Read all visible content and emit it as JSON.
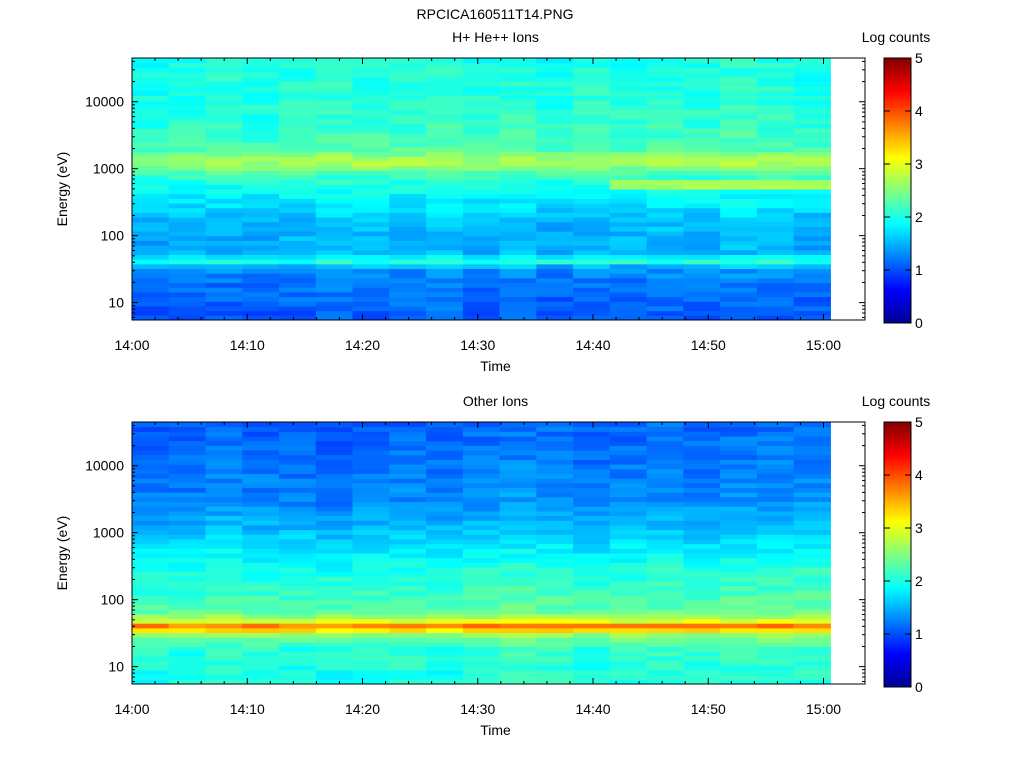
{
  "figure_title": "RPCICA160511T14.PNG",
  "colormap": [
    "#00008f",
    "#0000ff",
    "#0080ff",
    "#00ffff",
    "#80ff80",
    "#ffff00",
    "#ff8000",
    "#ff0000",
    "#800000"
  ],
  "chart_data": [
    {
      "type": "heatmap",
      "title": "H+ He++ Ions",
      "xlabel": "Time",
      "ylabel": "Energy (eV)",
      "xticks": [
        "14:00",
        "14:10",
        "14:20",
        "14:30",
        "14:40",
        "14:50",
        "15:00"
      ],
      "yticks": [
        "10",
        "100",
        "1000",
        "10000"
      ],
      "y_scale": "log",
      "ylim": [
        5.5,
        45000
      ],
      "x_range_minutes": [
        0,
        63.6
      ],
      "data_end_minutes": 60.6,
      "n_time_bins": 19,
      "colorbar": {
        "label": "Log counts",
        "ticks": [
          "0",
          "1",
          "2",
          "3",
          "4",
          "5"
        ],
        "range": [
          0,
          5
        ]
      },
      "energy_profile": [
        {
          "energy": 6,
          "log_counts": 1.05
        },
        {
          "energy": 10,
          "log_counts": 1.15
        },
        {
          "energy": 20,
          "log_counts": 1.2
        },
        {
          "energy": 33,
          "log_counts": 1.35
        },
        {
          "energy": 42,
          "log_counts": 2.1
        },
        {
          "energy": 55,
          "log_counts": 1.5
        },
        {
          "energy": 150,
          "log_counts": 1.55
        },
        {
          "energy": 400,
          "log_counts": 1.85
        },
        {
          "energy": 800,
          "log_counts": 2.15
        },
        {
          "energy": 1300,
          "log_counts": 2.8
        },
        {
          "energy": 2000,
          "log_counts": 2.25
        },
        {
          "energy": 5000,
          "log_counts": 2.1
        },
        {
          "energy": 45000,
          "log_counts": 2.0
        }
      ],
      "features": [
        {
          "energy": 600,
          "from_minutes": 42,
          "to_minutes": 60.6,
          "log_counts": 2.7
        }
      ]
    },
    {
      "type": "heatmap",
      "title": "Other Ions",
      "xlabel": "Time",
      "ylabel": "Energy (eV)",
      "xticks": [
        "14:00",
        "14:10",
        "14:20",
        "14:30",
        "14:40",
        "14:50",
        "15:00"
      ],
      "yticks": [
        "10",
        "100",
        "1000",
        "10000"
      ],
      "y_scale": "log",
      "ylim": [
        5.5,
        45000
      ],
      "x_range_minutes": [
        0,
        63.6
      ],
      "data_end_minutes": 60.6,
      "n_time_bins": 19,
      "colorbar": {
        "label": "Log counts",
        "ticks": [
          "0",
          "1",
          "2",
          "3",
          "4",
          "5"
        ],
        "range": [
          0,
          5
        ]
      },
      "energy_profile": [
        {
          "energy": 6,
          "log_counts": 2.0
        },
        {
          "energy": 20,
          "log_counts": 2.1
        },
        {
          "energy": 30,
          "log_counts": 2.6
        },
        {
          "energy": 40,
          "log_counts": 3.9
        },
        {
          "energy": 50,
          "log_counts": 2.8
        },
        {
          "energy": 70,
          "log_counts": 2.3
        },
        {
          "energy": 300,
          "log_counts": 2.0
        },
        {
          "energy": 1000,
          "log_counts": 1.6
        },
        {
          "energy": 3000,
          "log_counts": 1.3
        },
        {
          "energy": 45000,
          "log_counts": 1.1
        }
      ],
      "features": []
    }
  ]
}
